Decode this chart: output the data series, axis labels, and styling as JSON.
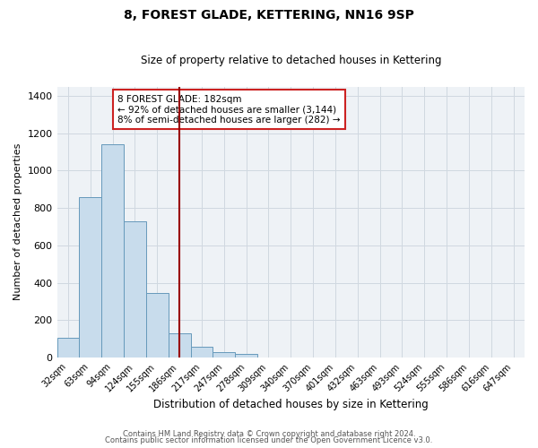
{
  "title": "8, FOREST GLADE, KETTERING, NN16 9SP",
  "subtitle": "Size of property relative to detached houses in Kettering",
  "xlabel": "Distribution of detached houses by size in Kettering",
  "ylabel": "Number of detached properties",
  "bar_values": [
    105,
    860,
    1140,
    730,
    345,
    130,
    60,
    28,
    18,
    0,
    0,
    0,
    0,
    0,
    0,
    0,
    0,
    0,
    0,
    0,
    0
  ],
  "bar_labels": [
    "32sqm",
    "63sqm",
    "94sqm",
    "124sqm",
    "155sqm",
    "186sqm",
    "217sqm",
    "247sqm",
    "278sqm",
    "309sqm",
    "340sqm",
    "370sqm",
    "401sqm",
    "432sqm",
    "463sqm",
    "493sqm",
    "524sqm",
    "555sqm",
    "586sqm",
    "616sqm",
    "647sqm"
  ],
  "bar_color": "#c8dcec",
  "bar_edge_color": "#6699bb",
  "vline_x": 5.0,
  "vline_color": "#990000",
  "annotation_line1": "8 FOREST GLADE: 182sqm",
  "annotation_line2": "← 92% of detached houses are smaller (3,144)",
  "annotation_line3": "8% of semi-detached houses are larger (282) →",
  "annotation_box_color": "#ffffff",
  "annotation_box_edge": "#cc2222",
  "ylim": [
    0,
    1450
  ],
  "yticks": [
    0,
    200,
    400,
    600,
    800,
    1000,
    1200,
    1400
  ],
  "grid_color": "#d0d8e0",
  "background_color": "#eef2f6",
  "footer1": "Contains HM Land Registry data © Crown copyright and database right 2024.",
  "footer2": "Contains public sector information licensed under the Open Government Licence v3.0."
}
